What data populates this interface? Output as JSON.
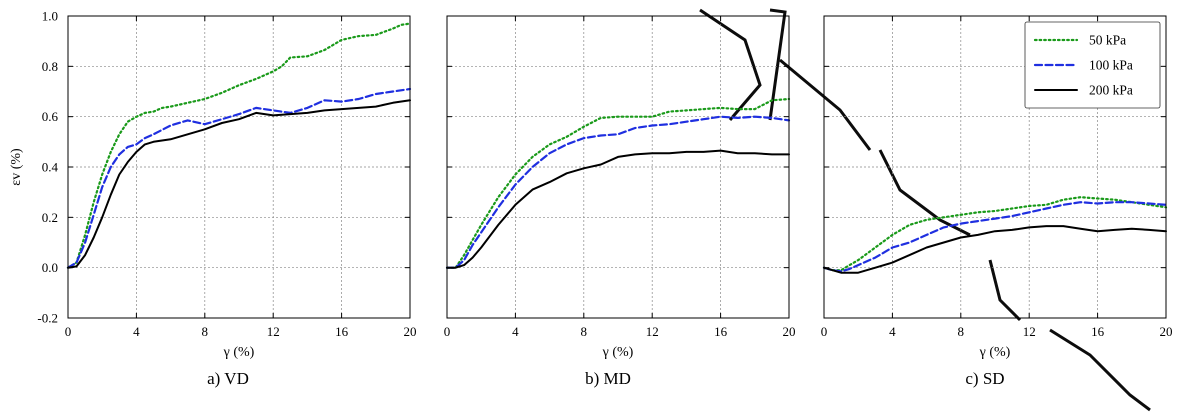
{
  "chart_data": [
    {
      "type": "line",
      "panel_id": "a",
      "caption": "a) VD",
      "xlabel": "γ (%)",
      "ylabel": "εv (%)",
      "xlim": [
        0,
        20
      ],
      "ylim": [
        -0.2,
        1.0
      ],
      "xticks": [
        "0",
        "4",
        "8",
        "12",
        "16",
        "20"
      ],
      "yticks": [
        "-0.2",
        "0.0",
        "0.2",
        "0.4",
        "0.6",
        "0.8",
        "1.0"
      ],
      "grid": true,
      "series": [
        {
          "name": "50 kPa",
          "color": "#1a9a1a",
          "style": "dotted",
          "x": [
            0,
            0.5,
            1,
            1.5,
            2,
            2.5,
            3,
            3.5,
            4,
            4.5,
            5,
            5.5,
            6,
            7,
            8,
            9,
            10,
            11,
            12,
            12.5,
            13,
            14,
            15,
            16,
            17,
            18,
            19,
            19.5,
            20
          ],
          "y": [
            0,
            0.02,
            0.13,
            0.26,
            0.37,
            0.46,
            0.53,
            0.58,
            0.6,
            0.615,
            0.62,
            0.635,
            0.64,
            0.655,
            0.67,
            0.695,
            0.725,
            0.75,
            0.78,
            0.8,
            0.835,
            0.84,
            0.865,
            0.905,
            0.92,
            0.925,
            0.95,
            0.965,
            0.97
          ]
        },
        {
          "name": "100 kPa",
          "color": "#1f2fe0",
          "style": "dashed",
          "x": [
            0,
            0.5,
            1,
            1.5,
            2,
            2.5,
            3,
            3.5,
            4,
            4.5,
            5,
            6,
            7,
            8,
            9,
            10,
            11,
            12,
            13,
            14,
            15,
            16,
            17,
            18,
            19,
            20
          ],
          "y": [
            0,
            0.02,
            0.1,
            0.21,
            0.32,
            0.4,
            0.45,
            0.48,
            0.49,
            0.515,
            0.53,
            0.565,
            0.585,
            0.57,
            0.59,
            0.61,
            0.635,
            0.625,
            0.615,
            0.635,
            0.665,
            0.66,
            0.67,
            0.69,
            0.7,
            0.71
          ]
        },
        {
          "name": "200 kPa",
          "color": "#000000",
          "style": "solid",
          "x": [
            0,
            0.5,
            1,
            1.5,
            2,
            2.5,
            3,
            3.5,
            4,
            4.5,
            5,
            6,
            7,
            8,
            9,
            10,
            11,
            12,
            13,
            14,
            15,
            16,
            17,
            18,
            19,
            20
          ],
          "y": [
            0,
            0.005,
            0.05,
            0.12,
            0.2,
            0.29,
            0.37,
            0.42,
            0.46,
            0.49,
            0.5,
            0.51,
            0.53,
            0.55,
            0.575,
            0.59,
            0.615,
            0.605,
            0.61,
            0.615,
            0.625,
            0.63,
            0.635,
            0.64,
            0.655,
            0.665
          ]
        }
      ]
    },
    {
      "type": "line",
      "panel_id": "b",
      "caption": "b) MD",
      "xlabel": "γ (%)",
      "ylabel": "",
      "xlim": [
        0,
        20
      ],
      "ylim": [
        -0.2,
        1.0
      ],
      "xticks": [
        "0",
        "4",
        "8",
        "12",
        "16",
        "20"
      ],
      "yticks": [],
      "grid": true,
      "series": [
        {
          "name": "50 kPa",
          "color": "#1a9a1a",
          "style": "dotted",
          "x": [
            0,
            0.5,
            1,
            1.5,
            2,
            3,
            4,
            5,
            6,
            7,
            8,
            9,
            10,
            11,
            12,
            13,
            14,
            15,
            16,
            17,
            18,
            19,
            20
          ],
          "y": [
            0,
            0,
            0.05,
            0.11,
            0.17,
            0.28,
            0.37,
            0.44,
            0.49,
            0.52,
            0.56,
            0.595,
            0.6,
            0.6,
            0.6,
            0.62,
            0.625,
            0.63,
            0.635,
            0.63,
            0.63,
            0.665,
            0.67
          ]
        },
        {
          "name": "100 kPa",
          "color": "#1f2fe0",
          "style": "dashed",
          "x": [
            0,
            0.5,
            1,
            1.5,
            2,
            3,
            4,
            5,
            6,
            7,
            8,
            9,
            10,
            11,
            12,
            13,
            14,
            15,
            16,
            17,
            18,
            19,
            20
          ],
          "y": [
            0,
            0,
            0.03,
            0.09,
            0.14,
            0.24,
            0.33,
            0.4,
            0.455,
            0.49,
            0.515,
            0.525,
            0.53,
            0.555,
            0.565,
            0.57,
            0.58,
            0.59,
            0.6,
            0.595,
            0.6,
            0.595,
            0.585
          ]
        },
        {
          "name": "200 kPa",
          "color": "#000000",
          "style": "solid",
          "x": [
            0,
            0.5,
            1,
            1.5,
            2,
            3,
            4,
            5,
            6,
            7,
            8,
            9,
            10,
            11,
            12,
            13,
            14,
            15,
            16,
            17,
            18,
            19,
            20
          ],
          "y": [
            0,
            0,
            0.01,
            0.04,
            0.08,
            0.17,
            0.25,
            0.31,
            0.34,
            0.375,
            0.395,
            0.41,
            0.44,
            0.45,
            0.455,
            0.455,
            0.46,
            0.46,
            0.465,
            0.455,
            0.455,
            0.45,
            0.45
          ]
        }
      ]
    },
    {
      "type": "line",
      "panel_id": "c",
      "caption": "c) SD",
      "xlabel": "γ (%)",
      "ylabel": "",
      "xlim": [
        0,
        20
      ],
      "ylim": [
        -0.2,
        1.0
      ],
      "xticks": [
        "0",
        "4",
        "8",
        "12",
        "16",
        "20"
      ],
      "yticks": [],
      "grid": true,
      "legend": "top-right",
      "series": [
        {
          "name": "50 kPa",
          "color": "#1a9a1a",
          "style": "dotted",
          "x": [
            0,
            0.5,
            1,
            1.5,
            2,
            3,
            4,
            5,
            6,
            7,
            8,
            9,
            10,
            11,
            12,
            13,
            14,
            15,
            16,
            17,
            18,
            19,
            20
          ],
          "y": [
            0,
            -0.01,
            -0.01,
            0.01,
            0.03,
            0.08,
            0.13,
            0.17,
            0.19,
            0.2,
            0.21,
            0.22,
            0.225,
            0.235,
            0.245,
            0.25,
            0.27,
            0.28,
            0.275,
            0.27,
            0.26,
            0.25,
            0.24
          ]
        },
        {
          "name": "100 kPa",
          "color": "#1f2fe0",
          "style": "dashed",
          "x": [
            0,
            0.5,
            1,
            1.5,
            2,
            3,
            4,
            5,
            6,
            7,
            8,
            9,
            10,
            11,
            12,
            13,
            14,
            15,
            16,
            17,
            18,
            19,
            20
          ],
          "y": [
            0,
            -0.01,
            -0.015,
            -0.005,
            0.01,
            0.04,
            0.08,
            0.1,
            0.13,
            0.16,
            0.175,
            0.185,
            0.195,
            0.205,
            0.22,
            0.235,
            0.25,
            0.26,
            0.255,
            0.26,
            0.26,
            0.255,
            0.25
          ]
        },
        {
          "name": "200 kPa",
          "color": "#000000",
          "style": "solid",
          "x": [
            0,
            0.5,
            1,
            1.5,
            2,
            3,
            4,
            5,
            6,
            7,
            8,
            9,
            10,
            11,
            12,
            13,
            14,
            15,
            16,
            17,
            18,
            19,
            20
          ],
          "y": [
            0,
            -0.01,
            -0.02,
            -0.02,
            -0.02,
            0,
            0.02,
            0.05,
            0.08,
            0.1,
            0.12,
            0.13,
            0.145,
            0.15,
            0.16,
            0.165,
            0.165,
            0.155,
            0.145,
            0.15,
            0.155,
            0.15,
            0.145
          ]
        }
      ]
    }
  ]
}
